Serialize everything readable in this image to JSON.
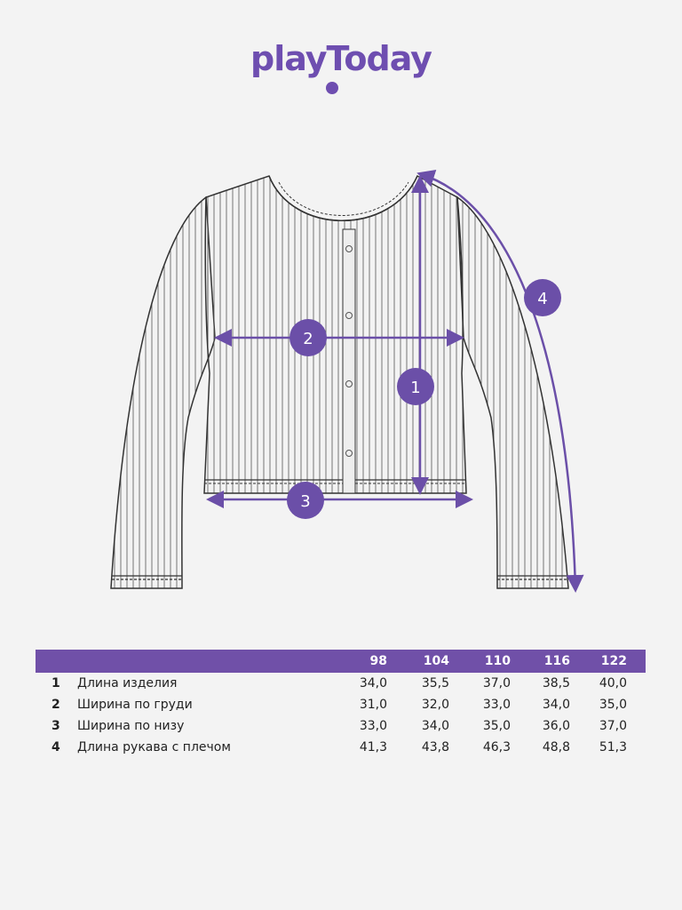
{
  "brand": {
    "logo_text": "playToday",
    "color": "#6e4eb0"
  },
  "diagram": {
    "markers": [
      "1",
      "2",
      "3",
      "4"
    ],
    "accent_color": "#6b4fa8"
  },
  "table": {
    "header_color": "#7050a8",
    "sizes": [
      "98",
      "104",
      "110",
      "116",
      "122"
    ],
    "rows": [
      {
        "num": "1",
        "label": "Длина изделия",
        "values": [
          "34,0",
          "35,5",
          "37,0",
          "38,5",
          "40,0"
        ]
      },
      {
        "num": "2",
        "label": "Ширина по груди",
        "values": [
          "31,0",
          "32,0",
          "33,0",
          "34,0",
          "35,0"
        ]
      },
      {
        "num": "3",
        "label": "Ширина по низу",
        "values": [
          "33,0",
          "34,0",
          "35,0",
          "36,0",
          "37,0"
        ]
      },
      {
        "num": "4",
        "label": "Длина рукава с плечом",
        "values": [
          "41,3",
          "43,8",
          "46,3",
          "48,8",
          "51,3"
        ]
      }
    ]
  }
}
